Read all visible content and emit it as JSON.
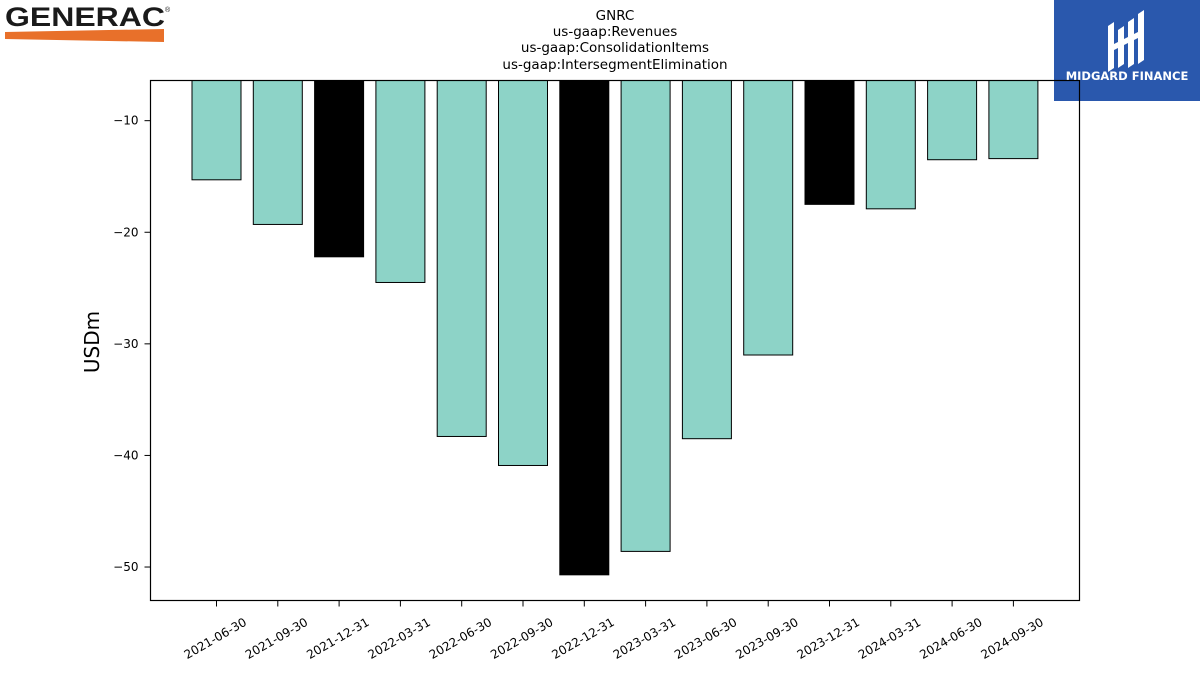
{
  "company_logo": {
    "text": "GENERAC",
    "registered_mark": "®",
    "stripe_color": "#e8702a",
    "text_color": "#1a1a1a"
  },
  "publisher_logo": {
    "text": "MIDGARD FINANCE",
    "background_color": "#2a58ad",
    "icon": "midgard-emblem-icon"
  },
  "chart_data": {
    "type": "bar",
    "title_lines": [
      "GNRC",
      "us-gaap:Revenues",
      "us-gaap:ConsolidationItems",
      "us-gaap:IntersegmentElimination"
    ],
    "ylabel": "USDm",
    "xlabel": "",
    "categories": [
      "2021-06-30",
      "2021-09-30",
      "2021-12-31",
      "2022-03-31",
      "2022-06-30",
      "2022-09-30",
      "2022-12-31",
      "2023-03-31",
      "2023-06-30",
      "2023-09-30",
      "2023-12-31",
      "2024-03-31",
      "2024-06-30",
      "2024-09-30"
    ],
    "values": [
      -15.3,
      -19.3,
      -22.2,
      -24.5,
      -38.3,
      -40.9,
      -50.7,
      -48.6,
      -38.5,
      -31.0,
      -17.5,
      -17.9,
      -13.5,
      -13.4
    ],
    "highlight": [
      false,
      false,
      true,
      false,
      false,
      false,
      true,
      false,
      false,
      false,
      true,
      false,
      false,
      false
    ],
    "colors": {
      "normal": "#8dd3c7",
      "highlight": "#000000",
      "edge": "#000000"
    },
    "yticks": [
      -10,
      -20,
      -30,
      -40,
      -50
    ],
    "ylim": [
      -53.0,
      -6.4
    ],
    "grid": false,
    "legend": "none"
  }
}
